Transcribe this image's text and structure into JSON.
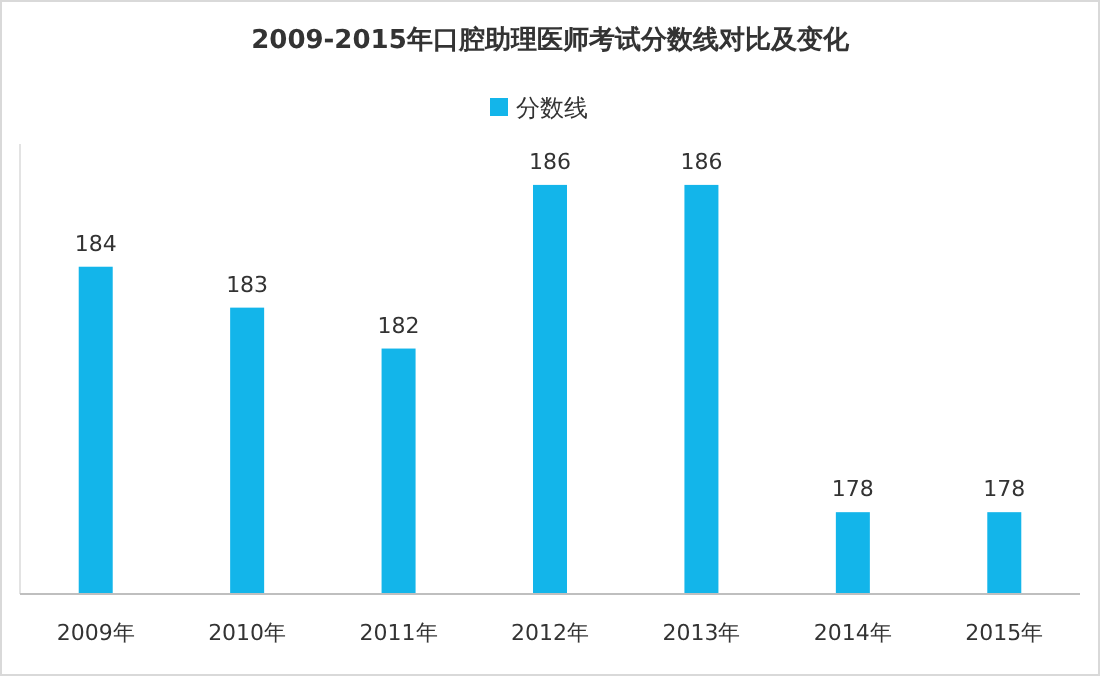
{
  "chart_data": {
    "type": "bar",
    "title": "2009-2015年口腔助理医师考试分数线对比及变化",
    "categories": [
      "2009年",
      "2010年",
      "2011年",
      "2012年",
      "2013年",
      "2014年",
      "2015年"
    ],
    "series": [
      {
        "name": "分数线",
        "color": "#13b5ea",
        "values": [
          184,
          183,
          182,
          186,
          186,
          178,
          178
        ]
      }
    ],
    "ylim": [
      176,
      187
    ],
    "tick_labels": "x",
    "data_labels": true,
    "legend": "top"
  }
}
